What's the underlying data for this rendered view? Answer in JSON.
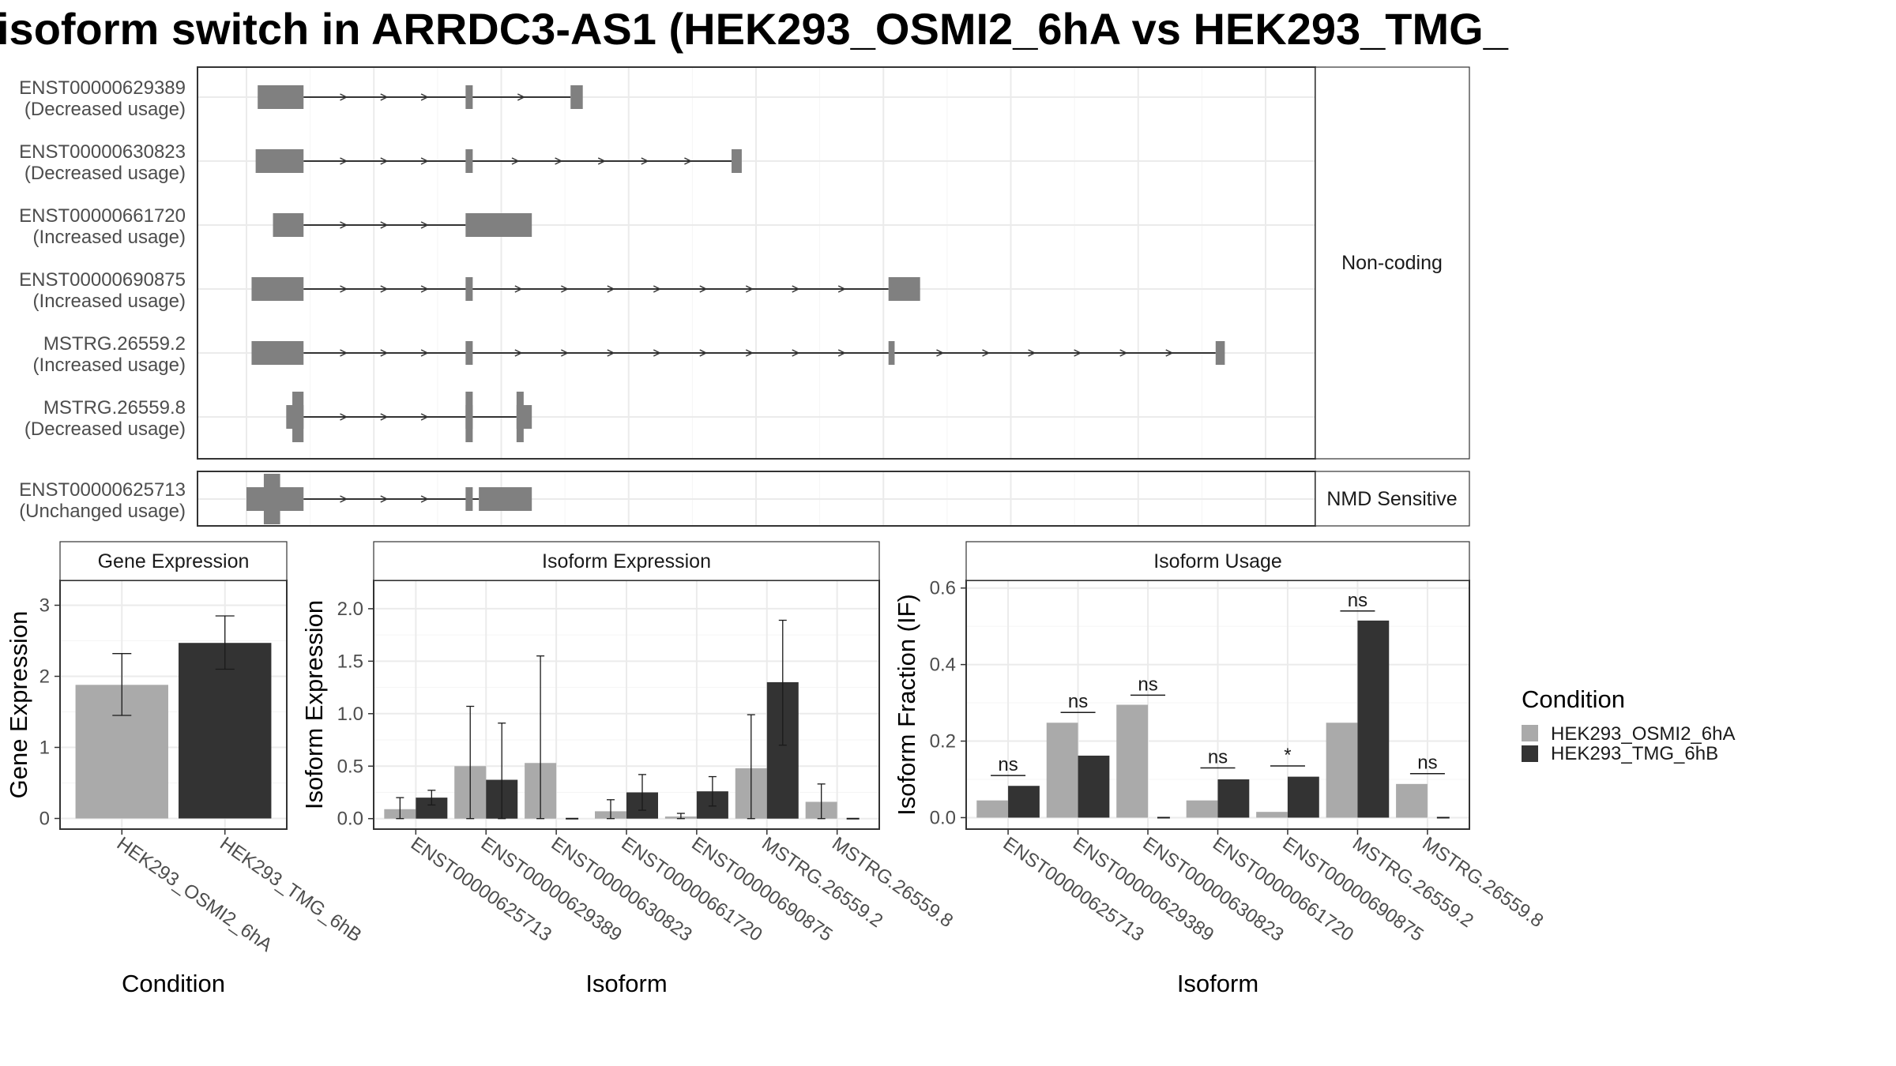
{
  "title": "isoform switch in ARRDC3-AS1 (HEK293_OSMI2_6hA vs HEK293_TMG_",
  "colors": {
    "exon": "#808080",
    "intron": "#333333",
    "HEK293_OSMI2_6hA": "#aaaaaa",
    "HEK293_TMG_6hB": "#333333"
  },
  "structure": {
    "genomic_range": [
      0,
      1000
    ],
    "groups": [
      {
        "name": "Non-coding",
        "transcripts": [
          {
            "id": "ENST00000629389",
            "usage": "(Decreased usage)",
            "exons": [
              [
                11,
                56
              ],
              [
                215,
                222
              ],
              [
                318,
                330
              ]
            ],
            "orf": []
          },
          {
            "id": "ENST00000630823",
            "usage": "(Decreased usage)",
            "exons": [
              [
                9,
                56
              ],
              [
                215,
                222
              ],
              [
                476,
                486
              ]
            ],
            "orf": []
          },
          {
            "id": "ENST00000661720",
            "usage": "(Increased usage)",
            "exons": [
              [
                26,
                56
              ],
              [
                215,
                280
              ]
            ],
            "orf": []
          },
          {
            "id": "ENST00000690875",
            "usage": "(Increased usage)",
            "exons": [
              [
                5,
                56
              ],
              [
                215,
                222
              ],
              [
                630,
                661
              ]
            ],
            "orf": []
          },
          {
            "id": "MSTRG.26559.2",
            "usage": "(Increased usage)",
            "exons": [
              [
                5,
                56
              ],
              [
                215,
                222
              ],
              [
                630,
                636
              ],
              [
                951,
                960
              ]
            ],
            "orf": []
          },
          {
            "id": "MSTRG.26559.8",
            "usage": "(Decreased usage)",
            "exons": [
              [
                39,
                56
              ],
              [
                215,
                222
              ],
              [
                265,
                280
              ]
            ],
            "orf": [
              [
                45,
                56
              ],
              [
                215,
                222
              ],
              [
                265,
                272
              ]
            ]
          }
        ]
      },
      {
        "name": "NMD Sensitive",
        "transcripts": [
          {
            "id": "ENST00000625713",
            "usage": "(Unchanged usage)",
            "exons": [
              [
                0,
                56
              ],
              [
                215,
                222
              ],
              [
                228,
                280
              ]
            ],
            "orf": [
              [
                17,
                33
              ]
            ]
          }
        ]
      }
    ]
  },
  "chart_data": [
    {
      "type": "bar",
      "title": "Gene Expression",
      "xlabel": "Condition",
      "ylabel": "Gene Expression",
      "ylim": [
        -0.15,
        3.35
      ],
      "yticks": [
        0,
        1,
        2,
        3
      ],
      "categories": [
        "HEK293_OSMI2_6hA",
        "HEK293_TMG_6hB"
      ],
      "values": [
        1.88,
        2.47
      ],
      "errors": [
        [
          1.45,
          2.32
        ],
        [
          2.1,
          2.85
        ]
      ]
    },
    {
      "type": "bar",
      "title": "Isoform Expression",
      "xlabel": "Isoform",
      "ylabel": "Isoform Expression",
      "ylim": [
        -0.1,
        2.27
      ],
      "yticks": [
        0.0,
        0.5,
        1.0,
        1.5,
        2.0
      ],
      "ytick_labels": [
        "0.0",
        "0.5",
        "1.0",
        "1.5",
        "2.0"
      ],
      "categories": [
        "ENST00000625713",
        "ENST00000629389",
        "ENST00000630823",
        "ENST00000661720",
        "ENST00000690875",
        "MSTRG.26559.2",
        "MSTRG.26559.8"
      ],
      "series": [
        {
          "name": "HEK293_OSMI2_6hA",
          "values": [
            0.09,
            0.5,
            0.53,
            0.07,
            0.02,
            0.48,
            0.16
          ],
          "errors": [
            [
              0.0,
              0.2
            ],
            [
              0.0,
              1.07
            ],
            [
              0.0,
              1.55
            ],
            [
              0.0,
              0.18
            ],
            [
              0.0,
              0.05
            ],
            [
              0.0,
              0.99
            ],
            [
              0.0,
              0.33
            ]
          ]
        },
        {
          "name": "HEK293_TMG_6hB",
          "values": [
            0.2,
            0.37,
            0.0,
            0.25,
            0.26,
            1.3,
            0.0
          ],
          "errors": [
            [
              0.13,
              0.27
            ],
            [
              0.0,
              0.91
            ],
            [
              0.0,
              0.0
            ],
            [
              0.08,
              0.42
            ],
            [
              0.12,
              0.4
            ],
            [
              0.7,
              1.89
            ],
            [
              0.0,
              0.0
            ]
          ]
        }
      ]
    },
    {
      "type": "bar",
      "title": "Isoform Usage",
      "xlabel": "Isoform",
      "ylabel": "Isoform Fraction (IF)",
      "ylim": [
        -0.03,
        0.62
      ],
      "yticks": [
        0.0,
        0.2,
        0.4,
        0.6
      ],
      "ytick_labels": [
        "0.0",
        "0.2",
        "0.4",
        "0.6"
      ],
      "categories": [
        "ENST00000625713",
        "ENST00000629389",
        "ENST00000630823",
        "ENST00000661720",
        "ENST00000690875",
        "MSTRG.26559.2",
        "MSTRG.26559.8"
      ],
      "series": [
        {
          "name": "HEK293_OSMI2_6hA",
          "values": [
            0.045,
            0.248,
            0.295,
            0.045,
            0.015,
            0.248,
            0.088
          ]
        },
        {
          "name": "HEK293_TMG_6hB",
          "values": [
            0.083,
            0.162,
            0.0,
            0.1,
            0.107,
            0.515,
            0.0
          ]
        }
      ],
      "significance": [
        {
          "label": "ns",
          "y": 0.11
        },
        {
          "label": "ns",
          "y": 0.275
        },
        {
          "label": "ns",
          "y": 0.32
        },
        {
          "label": "ns",
          "y": 0.13
        },
        {
          "label": "*",
          "y": 0.135
        },
        {
          "label": "ns",
          "y": 0.54
        },
        {
          "label": "ns",
          "y": 0.115
        }
      ]
    }
  ],
  "legend": {
    "title": "Condition",
    "items": [
      {
        "label": "HEK293_OSMI2_6hA",
        "color": "#aaaaaa"
      },
      {
        "label": "HEK293_TMG_6hB",
        "color": "#333333"
      }
    ]
  }
}
